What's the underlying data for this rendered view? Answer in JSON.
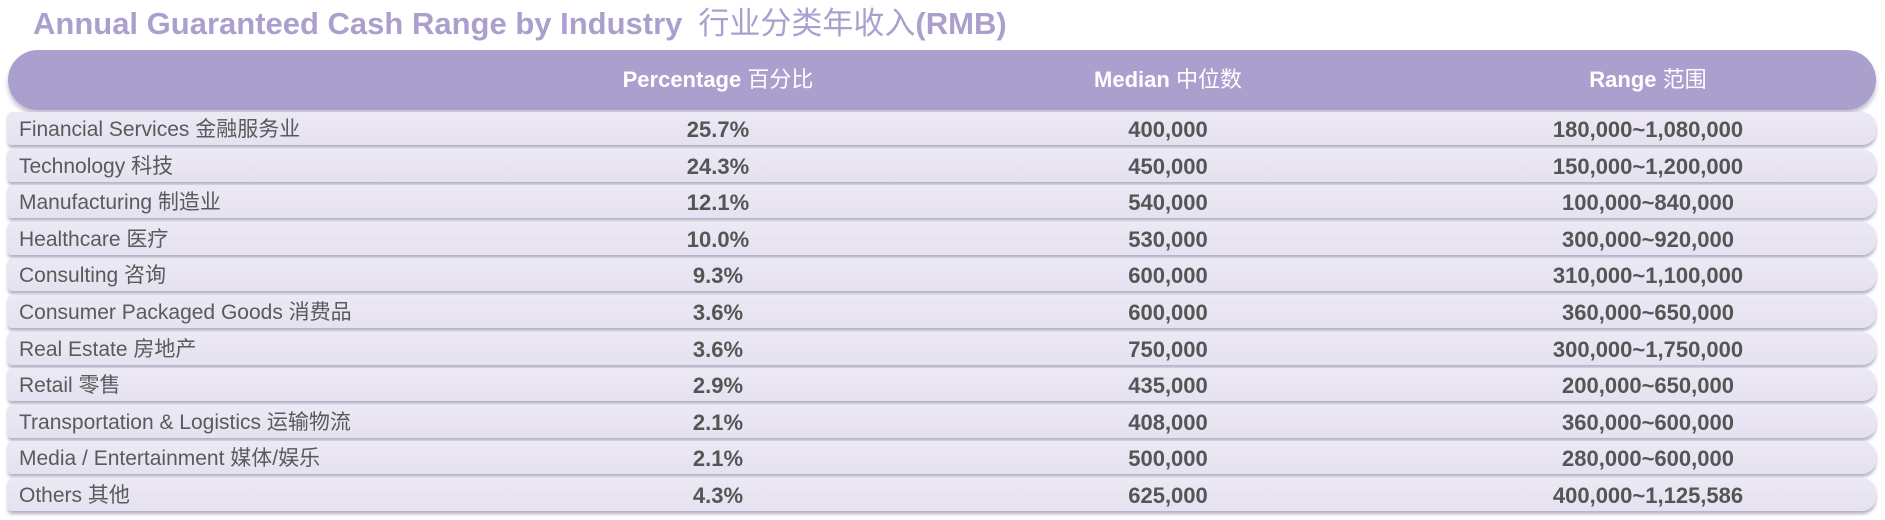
{
  "title": {
    "en": "Annual Guaranteed Cash Range by Industry",
    "zh": "行业分类年收入",
    "unit": "(RMB)"
  },
  "columns": [
    {
      "en": "Percentage",
      "zh": "百分比"
    },
    {
      "en": "Median",
      "zh": "中位数"
    },
    {
      "en": "Range",
      "zh": "范围"
    }
  ],
  "rows": [
    {
      "industry": "Financial Services 金融服务业",
      "percentage": "25.7%",
      "median": "400,000",
      "range": "180,000~1,080,000"
    },
    {
      "industry": "Technology 科技",
      "percentage": "24.3%",
      "median": "450,000",
      "range": "150,000~1,200,000"
    },
    {
      "industry": "Manufacturing 制造业",
      "percentage": "12.1%",
      "median": "540,000",
      "range": "100,000~840,000"
    },
    {
      "industry": "Healthcare 医疗",
      "percentage": "10.0%",
      "median": "530,000",
      "range": "300,000~920,000"
    },
    {
      "industry": "Consulting 咨询",
      "percentage": "9.3%",
      "median": "600,000",
      "range": "310,000~1,100,000"
    },
    {
      "industry": "Consumer Packaged Goods 消费品",
      "percentage": "3.6%",
      "median": "600,000",
      "range": "360,000~650,000"
    },
    {
      "industry": "Real Estate 房地产",
      "percentage": "3.6%",
      "median": "750,000",
      "range": "300,000~1,750,000"
    },
    {
      "industry": "Retail 零售",
      "percentage": "2.9%",
      "median": "435,000",
      "range": "200,000~650,000"
    },
    {
      "industry": "Transportation & Logistics 运输物流",
      "percentage": "2.1%",
      "median": "408,000",
      "range": "360,000~600,000"
    },
    {
      "industry": "Media / Entertainment 媒体/娱乐",
      "percentage": "2.1%",
      "median": "500,000",
      "range": "280,000~600,000"
    },
    {
      "industry": "Others 其他",
      "percentage": "4.3%",
      "median": "625,000",
      "range": "400,000~1,125,586"
    }
  ],
  "colors": {
    "accent": "#ab9fcd",
    "row_background": "#e9e5f2",
    "text": "#555555"
  }
}
